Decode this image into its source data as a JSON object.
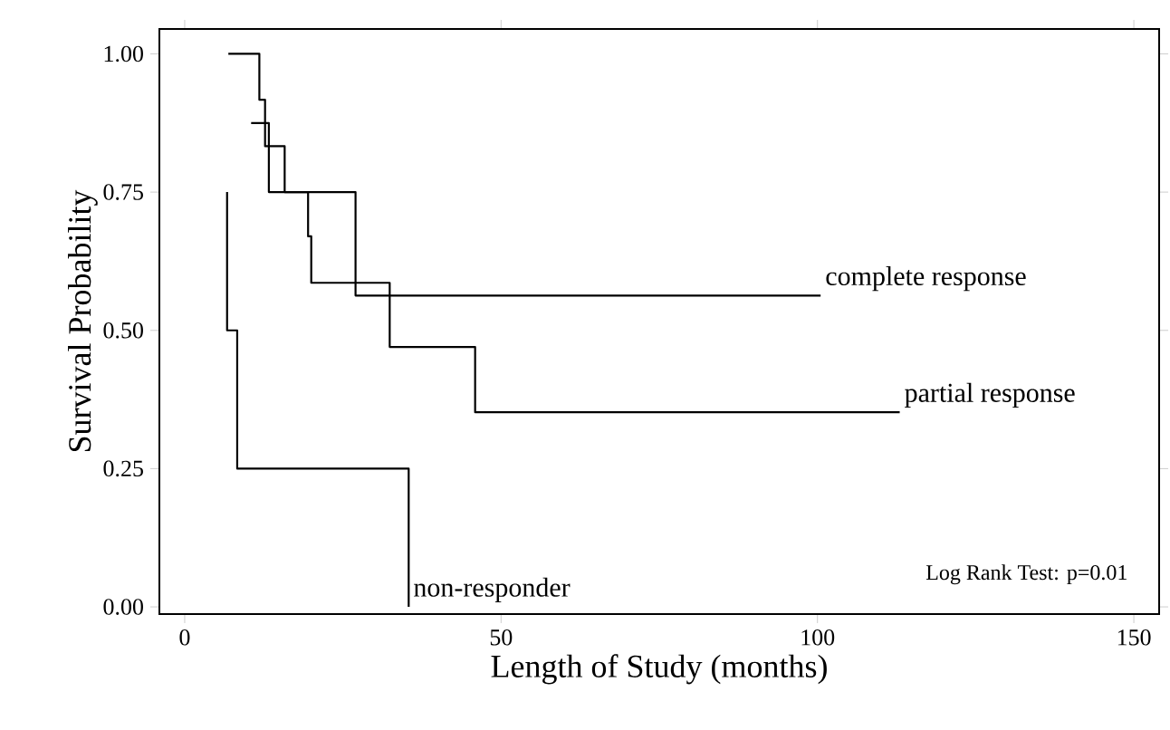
{
  "chart_data": {
    "type": "step",
    "xlabel": "Length of Study (months)",
    "ylabel": "Survival Probability",
    "xlim": [
      -4,
      154
    ],
    "ylim": [
      -0.013,
      1.045
    ],
    "xticks": [
      0,
      50,
      100,
      150
    ],
    "yticks": [
      {
        "value": 0,
        "label": "0.00"
      },
      {
        "value": 0.25,
        "label": "0.25"
      },
      {
        "value": 0.5,
        "label": "0.50"
      },
      {
        "value": 0.75,
        "label": "0.75"
      },
      {
        "value": 1,
        "label": "1.00"
      }
    ],
    "series": [
      {
        "name": "complete response",
        "color": "#000000",
        "x": [
          6.9,
          11.8,
          12.7,
          15.8,
          27,
          100.5
        ],
        "values": [
          1,
          0.917,
          0.833,
          0.75,
          0.563,
          0.563
        ]
      },
      {
        "name": "partial response",
        "color": "#000000",
        "x": [
          10.5,
          13.3,
          19.5,
          20,
          32.4,
          45.9,
          113
        ],
        "values": [
          0.875,
          0.75,
          0.67,
          0.586,
          0.47,
          0.352,
          0.352
        ]
      },
      {
        "name": "non-responder",
        "color": "#000000",
        "x": [
          6.7,
          6.7,
          8.3,
          35.4
        ],
        "values": [
          0.75,
          0.5,
          0.25,
          0
        ]
      }
    ],
    "annotations": [
      "Log Rank Test: p=0.01"
    ],
    "grid": false,
    "marker": "none",
    "line_style": "solid"
  }
}
